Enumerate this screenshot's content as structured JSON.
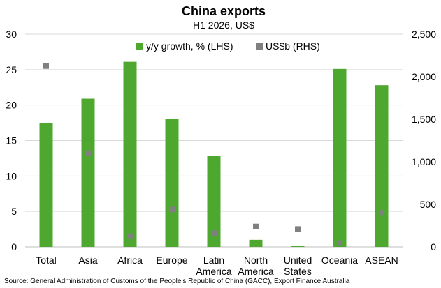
{
  "chart_data": {
    "type": "bar",
    "title": "China exports",
    "subtitle": "H1 2026, US$",
    "categories": [
      [
        "Total"
      ],
      [
        "Asia"
      ],
      [
        "Africa"
      ],
      [
        "Europe"
      ],
      [
        "Latin",
        "America"
      ],
      [
        "North",
        "America"
      ],
      [
        "United",
        "States"
      ],
      [
        "Oceania"
      ],
      [
        "ASEAN"
      ]
    ],
    "series": [
      {
        "name": "y/y growth, % (LHS)",
        "type": "bar",
        "axis": "left",
        "color": "#4ea72e",
        "values": [
          17.5,
          20.9,
          26.1,
          18.1,
          12.8,
          1.0,
          0.1,
          25.1,
          22.8
        ]
      },
      {
        "name": "US$b (RHS)",
        "type": "scatter",
        "axis": "right",
        "color": "#808080",
        "values": [
          2125,
          1100,
          125,
          440,
          160,
          240,
          210,
          45,
          400
        ]
      }
    ],
    "left_axis": {
      "min": 0,
      "max": 30,
      "ticks": [
        "0",
        "5",
        "10",
        "15",
        "20",
        "25",
        "30"
      ]
    },
    "right_axis": {
      "min": 0,
      "max": 2500,
      "ticks": [
        "0",
        "500",
        "1,000",
        "1,500",
        "2,000",
        "2,500"
      ]
    },
    "grid": true,
    "legend_position": "top-center"
  },
  "source": "Source: General Administration of Customs of the People's Republic of China (GACC), Export Finance Australia"
}
